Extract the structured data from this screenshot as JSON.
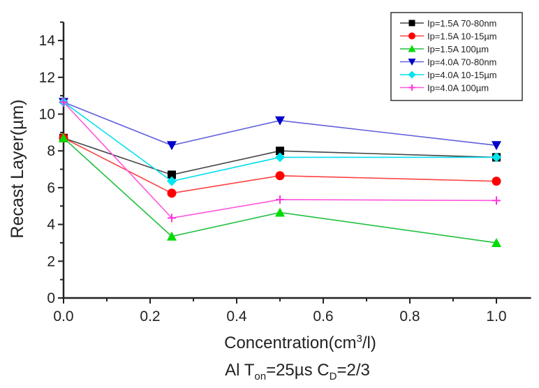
{
  "chart_data": {
    "type": "line",
    "title": "",
    "xlabel": "Concentration(cm³/l)",
    "xlabel_parts": {
      "pre": "Concentration(cm",
      "sup": "3",
      "post": "/l)"
    },
    "ylabel": "Recast  Layer(µm)",
    "caption": "Al Ton=25µs CD=2/3",
    "caption_parts": {
      "a": "Al T",
      "a_sub": "on",
      "b": "=25µs C",
      "b_sub": "D",
      "c": "=2/3"
    },
    "xlim": [
      0,
      1.08
    ],
    "ylim": [
      0,
      15
    ],
    "x_ticks": [
      0.0,
      0.2,
      0.4,
      0.6,
      0.8,
      1.0
    ],
    "x_tick_labels": [
      "0.0",
      "0.2",
      "0.4",
      "0.6",
      "0.8",
      "1.0"
    ],
    "y_ticks": [
      0,
      2,
      4,
      6,
      8,
      10,
      12,
      14
    ],
    "y_tick_labels": [
      "0",
      "2",
      "4",
      "6",
      "8",
      "10",
      "12",
      "14"
    ],
    "grid": false,
    "legend_position": "top-right",
    "x": [
      0,
      0.25,
      0.5,
      1.0
    ],
    "series": [
      {
        "name": "Ip=1.5A  70-80nm",
        "marker": "square",
        "color": "#000000",
        "line_color": "#444444",
        "values": [
          8.7,
          6.7,
          8.0,
          7.65
        ]
      },
      {
        "name": "Ip=1.5A  10-15µm",
        "marker": "circle",
        "color": "#ff0000",
        "line_color": "#ff4040",
        "values": [
          8.7,
          5.7,
          6.65,
          6.35
        ]
      },
      {
        "name": "Ip=1.5A  100µm",
        "marker": "triangle-up",
        "color": "#00dd00",
        "line_color": "#20c040",
        "values": [
          8.7,
          3.35,
          4.65,
          3.0
        ]
      },
      {
        "name": "Ip=4.0A  70-80nm",
        "marker": "triangle-down",
        "color": "#0000cc",
        "line_color": "#6060dd",
        "values": [
          10.65,
          8.3,
          9.65,
          8.3
        ]
      },
      {
        "name": "Ip=4.0A  10-15µm",
        "marker": "diamond",
        "color": "#00e5ee",
        "line_color": "#00e0ee",
        "values": [
          10.65,
          6.35,
          7.65,
          7.65
        ]
      },
      {
        "name": "Ip=4.0A  100µm",
        "marker": "plus",
        "color": "#ff33dd",
        "line_color": "#ff55dd",
        "values": [
          10.65,
          4.35,
          5.35,
          5.3
        ]
      }
    ]
  }
}
